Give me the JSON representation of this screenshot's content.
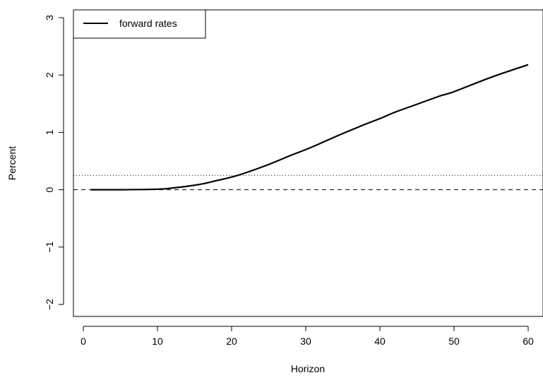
{
  "chart_data": {
    "type": "line",
    "xlabel": "Horizon",
    "ylabel": "Percent",
    "xlim": [
      0,
      60
    ],
    "ylim": [
      -2,
      3
    ],
    "x_ticks": [
      0,
      10,
      20,
      30,
      40,
      50,
      60
    ],
    "y_ticks": [
      -2,
      -1,
      0,
      1,
      2,
      3
    ],
    "legend": {
      "position": "top-left",
      "entries": [
        "forward rates"
      ]
    },
    "grid": false,
    "reference_lines": [
      {
        "axis": "y",
        "value": 0,
        "style": "dashed"
      },
      {
        "axis": "y",
        "value": 0.25,
        "style": "dotted"
      }
    ],
    "series": [
      {
        "name": "forward rates",
        "color": "#000000",
        "x": [
          1,
          5,
          10,
          12,
          14,
          16,
          18,
          20,
          22,
          25,
          28,
          30,
          32,
          35,
          38,
          40,
          42,
          45,
          48,
          50,
          55,
          60
        ],
        "values": [
          0.0,
          0.0,
          0.01,
          0.03,
          0.06,
          0.1,
          0.16,
          0.22,
          0.3,
          0.44,
          0.6,
          0.7,
          0.81,
          0.98,
          1.14,
          1.24,
          1.35,
          1.49,
          1.63,
          1.71,
          1.96,
          2.18
        ]
      }
    ]
  }
}
